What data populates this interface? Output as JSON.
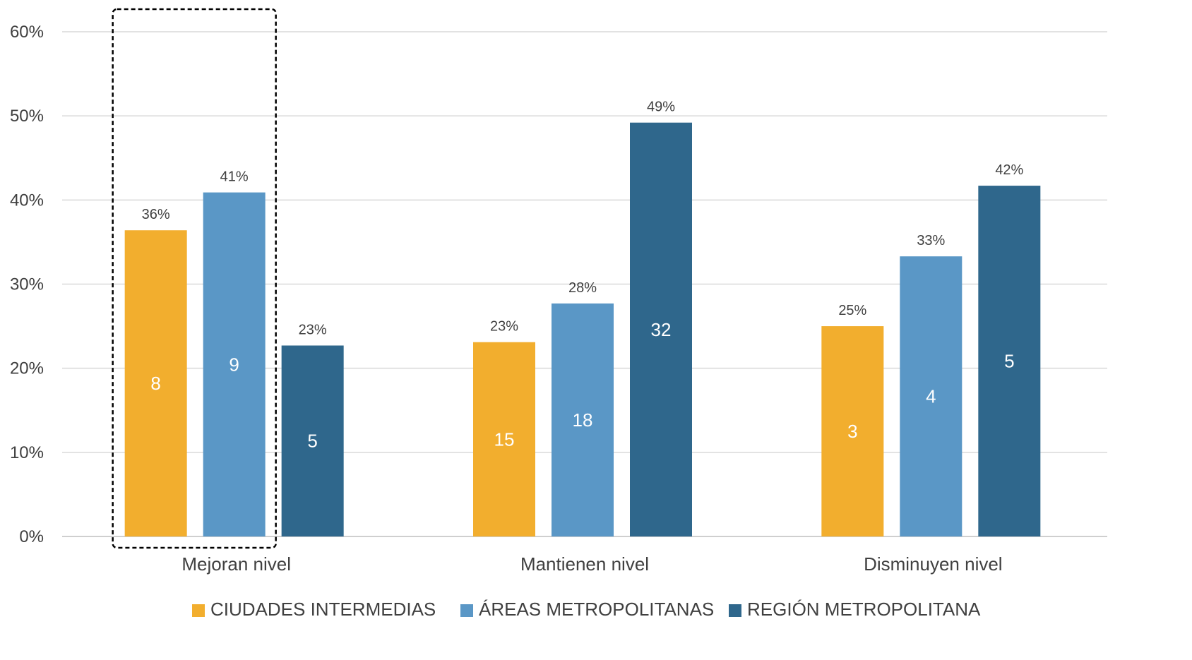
{
  "chart_data": {
    "type": "bar",
    "categories": [
      "Mejoran nivel",
      "Mantienen nivel",
      "Disminuyen nivel"
    ],
    "series": [
      {
        "name": "CIUDADES INTERMEDIAS",
        "color": "#F2AE2E",
        "values": [
          36.4,
          23.1,
          25.0
        ],
        "value_labels": [
          "36%",
          "23%",
          "25%"
        ],
        "counts": [
          "8",
          "15",
          "3"
        ]
      },
      {
        "name": "ÁREAS METROPOLITANAS",
        "color": "#5A97C6",
        "values": [
          40.9,
          27.7,
          33.3
        ],
        "value_labels": [
          "41%",
          "28%",
          "33%"
        ],
        "counts": [
          "9",
          "18",
          "4"
        ]
      },
      {
        "name": "REGIÓN METROPOLITANA",
        "color": "#2F678C",
        "values": [
          22.7,
          49.2,
          41.7
        ],
        "value_labels": [
          "23%",
          "49%",
          "42%"
        ],
        "counts": [
          "5",
          "32",
          "5"
        ]
      }
    ],
    "y_ticks": [
      "0%",
      "10%",
      "20%",
      "30%",
      "40%",
      "50%",
      "60%"
    ],
    "ylim": [
      0,
      60
    ],
    "title": "",
    "xlabel": "",
    "ylabel": "",
    "grid": true,
    "legend_position": "bottom",
    "highlight": "Mejoran nivel"
  }
}
